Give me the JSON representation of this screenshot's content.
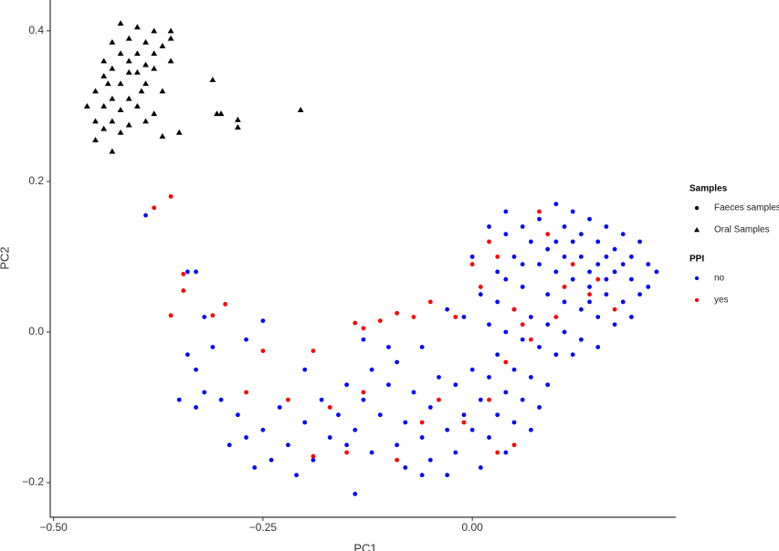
{
  "chart_data": {
    "type": "scatter",
    "x_label": "PC1",
    "y_label": "PC2",
    "xlim": [
      -0.504,
      0.243
    ],
    "ylim": [
      -0.246,
      0.441
    ],
    "xticks": [
      {
        "value": -0.5,
        "label": "−0.50"
      },
      {
        "value": -0.25,
        "label": "−0.25"
      },
      {
        "value": 0,
        "label": "0.00"
      }
    ],
    "yticks": [
      {
        "value": -0.2,
        "label": "−0.2"
      },
      {
        "value": 0,
        "label": "0.0"
      },
      0.2,
      0.4
    ],
    "legends": [
      {
        "title": "Samples",
        "items": [
          {
            "label": "Faeces samples",
            "marker": "circle",
            "color": "#000000"
          },
          {
            "label": "Oral Samples",
            "marker": "triangle",
            "color": "#000000"
          }
        ]
      },
      {
        "title": "PPI",
        "items": [
          {
            "label": "no",
            "marker": "circle",
            "color": "#0000ff"
          },
          {
            "label": "yes",
            "marker": "circle",
            "color": "#ff0000"
          }
        ]
      }
    ],
    "series": [
      {
        "marker": "triangle",
        "color": "#000000",
        "x": [
          -0.42,
          -0.4,
          -0.38,
          -0.36,
          -0.41,
          -0.39,
          -0.37,
          -0.43,
          -0.42,
          -0.4,
          -0.38,
          -0.41,
          -0.39,
          -0.36,
          -0.43,
          -0.4,
          -0.44,
          -0.42,
          -0.39,
          -0.37,
          -0.45,
          -0.43,
          -0.41,
          -0.46,
          -0.44,
          -0.42,
          -0.4,
          -0.38,
          -0.45,
          -0.43,
          -0.41,
          -0.39,
          -0.44,
          -0.42,
          -0.45,
          -0.43,
          -0.37,
          -0.35,
          -0.31,
          -0.3,
          -0.305,
          -0.28,
          -0.28,
          -0.205,
          -0.36,
          -0.44,
          -0.38,
          -0.41,
          -0.395,
          -0.435
        ],
        "y": [
          0.41,
          0.405,
          0.4,
          0.4,
          0.39,
          0.385,
          0.38,
          0.385,
          0.37,
          0.37,
          0.37,
          0.36,
          0.355,
          0.36,
          0.35,
          0.345,
          0.34,
          0.33,
          0.33,
          0.32,
          0.32,
          0.31,
          0.31,
          0.3,
          0.3,
          0.295,
          0.3,
          0.29,
          0.28,
          0.28,
          0.275,
          0.28,
          0.27,
          0.265,
          0.255,
          0.24,
          0.26,
          0.265,
          0.335,
          0.29,
          0.29,
          0.282,
          0.272,
          0.295,
          0.39,
          0.36,
          0.35,
          0.345,
          0.32,
          0.33
        ]
      },
      {
        "marker": "circle",
        "color": "#0000ff",
        "x": [
          0.1,
          0.12,
          0.14,
          0.16,
          0.18,
          0.2,
          0.08,
          0.06,
          0.04,
          0.11,
          0.13,
          0.15,
          0.17,
          0.19,
          0.21,
          0.22,
          0.07,
          0.09,
          0.11,
          0.13,
          0.15,
          0.17,
          0.19,
          0.21,
          0.05,
          0.08,
          0.1,
          0.12,
          0.14,
          0.16,
          0.18,
          0.2,
          0.04,
          0.06,
          0.09,
          0.11,
          0.13,
          0.15,
          0.17,
          0.19,
          0.03,
          0.05,
          0.07,
          0.09,
          0.11,
          0.13,
          0.15,
          0.12,
          0.02,
          0.04,
          0.06,
          0.08,
          0.1,
          0.14,
          0.16,
          0.18,
          0.12,
          0.1,
          0.14,
          0.16,
          0.03,
          0.05,
          0.07,
          0.09,
          0.02,
          0.04,
          0.06,
          0.08,
          0.0,
          0.01,
          0.03,
          0.05,
          -0.02,
          -0.01,
          0.0,
          0.02,
          -0.04,
          -0.05,
          -0.03,
          -0.02,
          -0.07,
          -0.08,
          -0.06,
          -0.05,
          -0.1,
          -0.11,
          -0.09,
          -0.08,
          -0.13,
          -0.14,
          -0.12,
          -0.03,
          0.01,
          0.04,
          -0.01,
          0.01,
          -0.03,
          -0.06,
          -0.09,
          -0.12,
          -0.15,
          -0.16,
          -0.15,
          -0.17,
          -0.18,
          -0.19,
          -0.2,
          -0.21,
          -0.22,
          -0.23,
          -0.24,
          -0.25,
          -0.26,
          -0.27,
          -0.28,
          -0.3,
          -0.29,
          -0.32,
          -0.33,
          -0.31,
          -0.34,
          -0.35,
          -0.33,
          -0.34,
          -0.33,
          -0.32,
          -0.25,
          -0.14,
          -0.13,
          -0.1,
          0.0,
          0.02,
          0.04,
          -0.39,
          -0.27,
          -0.2,
          -0.06,
          0.07,
          0.03,
          0.06
        ],
        "y": [
          0.17,
          0.16,
          0.15,
          0.14,
          0.13,
          0.12,
          0.15,
          0.14,
          0.13,
          0.14,
          0.13,
          0.12,
          0.11,
          0.1,
          0.09,
          0.08,
          0.12,
          0.11,
          0.1,
          0.1,
          0.09,
          0.08,
          0.07,
          0.06,
          0.1,
          0.09,
          0.08,
          0.07,
          0.06,
          0.05,
          0.04,
          0.05,
          0.07,
          0.06,
          0.05,
          0.04,
          0.03,
          0.02,
          0.01,
          0.02,
          0.04,
          0.03,
          0.02,
          0.01,
          0.0,
          -0.01,
          -0.02,
          -0.03,
          0.01,
          0.0,
          -0.01,
          -0.02,
          -0.03,
          0.04,
          0.07,
          0.09,
          0.12,
          0.12,
          0.08,
          0.1,
          -0.03,
          -0.05,
          -0.06,
          -0.07,
          -0.06,
          -0.08,
          -0.09,
          -0.1,
          -0.05,
          -0.09,
          -0.11,
          -0.12,
          -0.07,
          -0.11,
          -0.13,
          -0.14,
          -0.06,
          -0.1,
          -0.13,
          -0.16,
          -0.08,
          -0.12,
          -0.14,
          -0.17,
          -0.07,
          -0.11,
          -0.15,
          -0.18,
          -0.09,
          -0.13,
          -0.16,
          -0.19,
          -0.18,
          -0.16,
          0.02,
          0.05,
          0.03,
          -0.02,
          -0.04,
          -0.05,
          -0.07,
          -0.11,
          -0.15,
          -0.14,
          -0.09,
          -0.17,
          -0.12,
          -0.19,
          -0.15,
          -0.1,
          -0.17,
          -0.13,
          -0.18,
          -0.14,
          -0.11,
          -0.09,
          -0.15,
          -0.08,
          -0.05,
          -0.02,
          -0.03,
          -0.09,
          -0.1,
          0.08,
          0.08,
          0.02,
          0.015,
          -0.215,
          -0.01,
          -0.02,
          0.1,
          0.14,
          0.16,
          0.155,
          -0.01,
          -0.05,
          -0.19,
          -0.13,
          0.08,
          0.09
        ]
      },
      {
        "marker": "circle",
        "color": "#ff0000",
        "x": [
          -0.38,
          -0.36,
          -0.345,
          -0.36,
          -0.31,
          -0.295,
          -0.345,
          -0.25,
          -0.27,
          -0.22,
          -0.19,
          -0.17,
          -0.14,
          -0.13,
          -0.11,
          -0.09,
          -0.07,
          -0.05,
          -0.02,
          0.0,
          0.02,
          0.03,
          0.01,
          0.05,
          0.08,
          0.09,
          0.12,
          0.14,
          0.17,
          0.15,
          0.1,
          0.07,
          0.04,
          0.02,
          -0.01,
          -0.04,
          -0.06,
          -0.09,
          -0.13,
          -0.19,
          -0.15,
          0.05,
          0.03,
          0.11,
          0.06
        ],
        "y": [
          0.165,
          0.18,
          0.055,
          0.022,
          0.022,
          0.037,
          0.077,
          -0.025,
          -0.08,
          -0.09,
          -0.025,
          -0.1,
          0.012,
          0.005,
          0.015,
          0.025,
          0.02,
          0.04,
          0.02,
          0.09,
          0.12,
          0.1,
          0.06,
          0.03,
          0.16,
          0.13,
          0.09,
          0.05,
          0.03,
          0.07,
          0.02,
          -0.01,
          -0.04,
          -0.09,
          -0.12,
          -0.09,
          -0.12,
          -0.17,
          -0.08,
          -0.165,
          -0.16,
          -0.15,
          -0.16,
          0.06,
          0.01
        ]
      }
    ]
  }
}
